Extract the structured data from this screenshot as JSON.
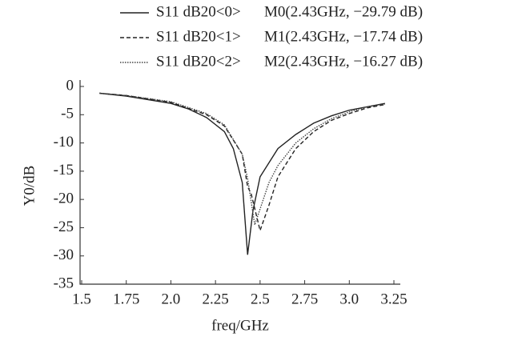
{
  "chart_data": {
    "type": "line",
    "x_label": "freq/GHz",
    "y_label": "Y0/dB",
    "xlim": [
      1.5,
      3.25
    ],
    "xticks": [
      1.5,
      1.75,
      {
        "value": 2,
        "label": "2.0"
      },
      2.25,
      2.5,
      2.75,
      {
        "value": 3,
        "label": "3.0"
      },
      3.25
    ],
    "ylim": [
      -35,
      0
    ],
    "yticks": [
      0,
      -5,
      -10,
      -15,
      -20,
      -25,
      -30,
      -35
    ],
    "series": [
      {
        "name": "S11 dB20<0>",
        "marker_label": "M0(2.43GHz, −29.79 dB)",
        "color": "#222",
        "dash": "solid",
        "x": [
          1.6,
          1.75,
          2.0,
          2.1,
          2.2,
          2.3,
          2.35,
          2.4,
          2.43,
          2.46,
          2.5,
          2.6,
          2.7,
          2.8,
          2.9,
          3.0,
          3.1,
          3.2
        ],
        "values": [
          -1.2,
          -1.7,
          -3.0,
          -4.0,
          -5.5,
          -8.0,
          -11,
          -17,
          -29.79,
          -22,
          -16,
          -11,
          -8.5,
          -6.5,
          -5.2,
          -4.2,
          -3.6,
          -3.0
        ]
      },
      {
        "name": "S11 dB20<1>",
        "marker_label": "M1(2.43GHz, −17.74 dB)",
        "color": "#222",
        "dash": "dashed",
        "x": [
          1.6,
          1.75,
          2.0,
          2.2,
          2.3,
          2.4,
          2.43,
          2.45,
          2.5,
          2.55,
          2.6,
          2.7,
          2.8,
          2.9,
          3.0,
          3.1,
          3.2
        ],
        "values": [
          -1.2,
          -1.6,
          -2.8,
          -5,
          -7,
          -12,
          -17.74,
          -19,
          -25.5,
          -21,
          -16,
          -11,
          -8,
          -6,
          -4.8,
          -3.8,
          -3.2
        ]
      },
      {
        "name": "S11 dB20<2>",
        "marker_label": "M2(2.43GHz, −16.27 dB)",
        "color": "#444",
        "dash": "dotted",
        "x": [
          1.6,
          1.75,
          2.0,
          2.2,
          2.3,
          2.4,
          2.43,
          2.47,
          2.55,
          2.6,
          2.7,
          2.8,
          2.9,
          3.0,
          3.1,
          3.2
        ],
        "values": [
          -1.2,
          -1.6,
          -2.7,
          -4.8,
          -6.8,
          -12,
          -16.27,
          -24.5,
          -17,
          -14,
          -10,
          -7.5,
          -5.7,
          -4.5,
          -3.6,
          -3.1
        ]
      }
    ]
  }
}
